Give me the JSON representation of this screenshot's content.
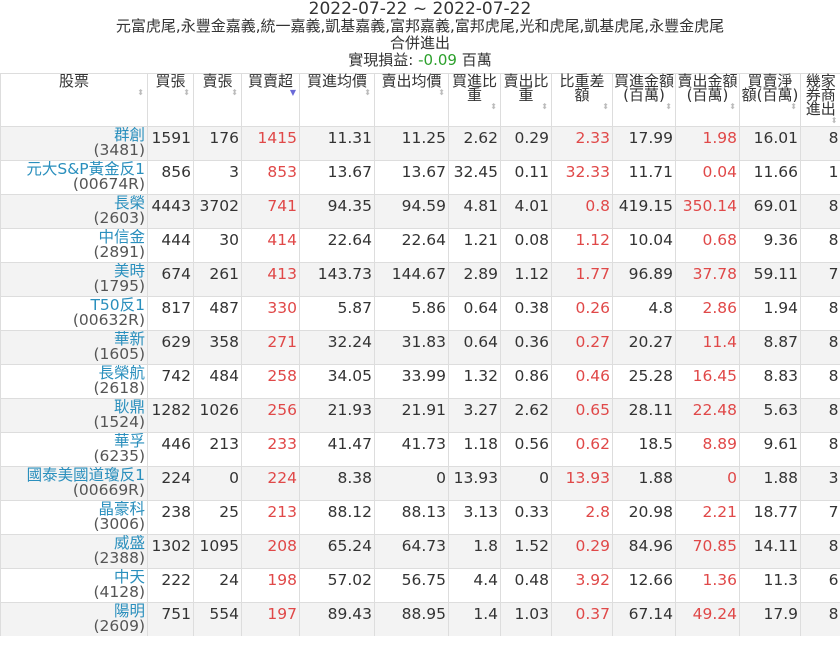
{
  "header": {
    "date_range": "2022-07-22 ~ 2022-07-22",
    "brokers": "元富虎尾,永豐金嘉義,統一嘉義,凱基嘉義,富邦嘉義,富邦虎尾,光和虎尾,凱基虎尾,永豐金虎尾",
    "subtitle": "合併進出",
    "pnl_label": "實現損益:",
    "pnl_value": "-0.09",
    "pnl_unit": "百萬"
  },
  "colors": {
    "positive": "#e04848",
    "pnl": "#2ca02c",
    "link": "#2a8fbd"
  },
  "columns": [
    "股票",
    "買張",
    "賣張",
    "買賣超",
    "買進均價",
    "賣出均價",
    "買進比重",
    "賣出比重",
    "比重差額",
    "買進金額(百萬)",
    "賣出金額(百萬)",
    "買賣淨額(百萬)",
    "幾家券商進出"
  ],
  "sorted_column": "買賣超",
  "rows": [
    [
      "群創",
      "(3481)",
      "1591",
      "176",
      "1415",
      "11.31",
      "11.25",
      "2.62",
      "0.29",
      "2.33",
      "17.99",
      "1.98",
      "16.01",
      "8"
    ],
    [
      "元大S&P黃金反1",
      "(00674R)",
      "856",
      "3",
      "853",
      "13.67",
      "13.67",
      "32.45",
      "0.11",
      "32.33",
      "11.71",
      "0.04",
      "11.66",
      "1"
    ],
    [
      "長榮",
      "(2603)",
      "4443",
      "3702",
      "741",
      "94.35",
      "94.59",
      "4.81",
      "4.01",
      "0.8",
      "419.15",
      "350.14",
      "69.01",
      "8"
    ],
    [
      "中信金",
      "(2891)",
      "444",
      "30",
      "414",
      "22.64",
      "22.64",
      "1.21",
      "0.08",
      "1.12",
      "10.04",
      "0.68",
      "9.36",
      "8"
    ],
    [
      "美時",
      "(1795)",
      "674",
      "261",
      "413",
      "143.73",
      "144.67",
      "2.89",
      "1.12",
      "1.77",
      "96.89",
      "37.78",
      "59.11",
      "7"
    ],
    [
      "T50反1",
      "(00632R)",
      "817",
      "487",
      "330",
      "5.87",
      "5.86",
      "0.64",
      "0.38",
      "0.26",
      "4.8",
      "2.86",
      "1.94",
      "8"
    ],
    [
      "華新",
      "(1605)",
      "629",
      "358",
      "271",
      "32.24",
      "31.83",
      "0.64",
      "0.36",
      "0.27",
      "20.27",
      "11.4",
      "8.87",
      "8"
    ],
    [
      "長榮航",
      "(2618)",
      "742",
      "484",
      "258",
      "34.05",
      "33.99",
      "1.32",
      "0.86",
      "0.46",
      "25.28",
      "16.45",
      "8.83",
      "8"
    ],
    [
      "耿鼎",
      "(1524)",
      "1282",
      "1026",
      "256",
      "21.93",
      "21.91",
      "3.27",
      "2.62",
      "0.65",
      "28.11",
      "22.48",
      "5.63",
      "8"
    ],
    [
      "華孚",
      "(6235)",
      "446",
      "213",
      "233",
      "41.47",
      "41.73",
      "1.18",
      "0.56",
      "0.62",
      "18.5",
      "8.89",
      "9.61",
      "8"
    ],
    [
      "國泰美國道瓊反1",
      "(00669R)",
      "224",
      "0",
      "224",
      "8.38",
      "0",
      "13.93",
      "0",
      "13.93",
      "1.88",
      "0",
      "1.88",
      "3"
    ],
    [
      "晶豪科",
      "(3006)",
      "238",
      "25",
      "213",
      "88.12",
      "88.13",
      "3.13",
      "0.33",
      "2.8",
      "20.98",
      "2.21",
      "18.77",
      "7"
    ],
    [
      "威盛",
      "(2388)",
      "1302",
      "1095",
      "208",
      "65.24",
      "64.73",
      "1.8",
      "1.52",
      "0.29",
      "84.96",
      "70.85",
      "14.11",
      "8"
    ],
    [
      "中天",
      "(4128)",
      "222",
      "24",
      "198",
      "57.02",
      "56.75",
      "4.4",
      "0.48",
      "3.92",
      "12.66",
      "1.36",
      "11.3",
      "6"
    ],
    [
      "陽明",
      "(2609)",
      "751",
      "554",
      "197",
      "89.43",
      "88.95",
      "1.4",
      "1.03",
      "0.37",
      "67.14",
      "49.24",
      "17.9",
      "8"
    ]
  ]
}
